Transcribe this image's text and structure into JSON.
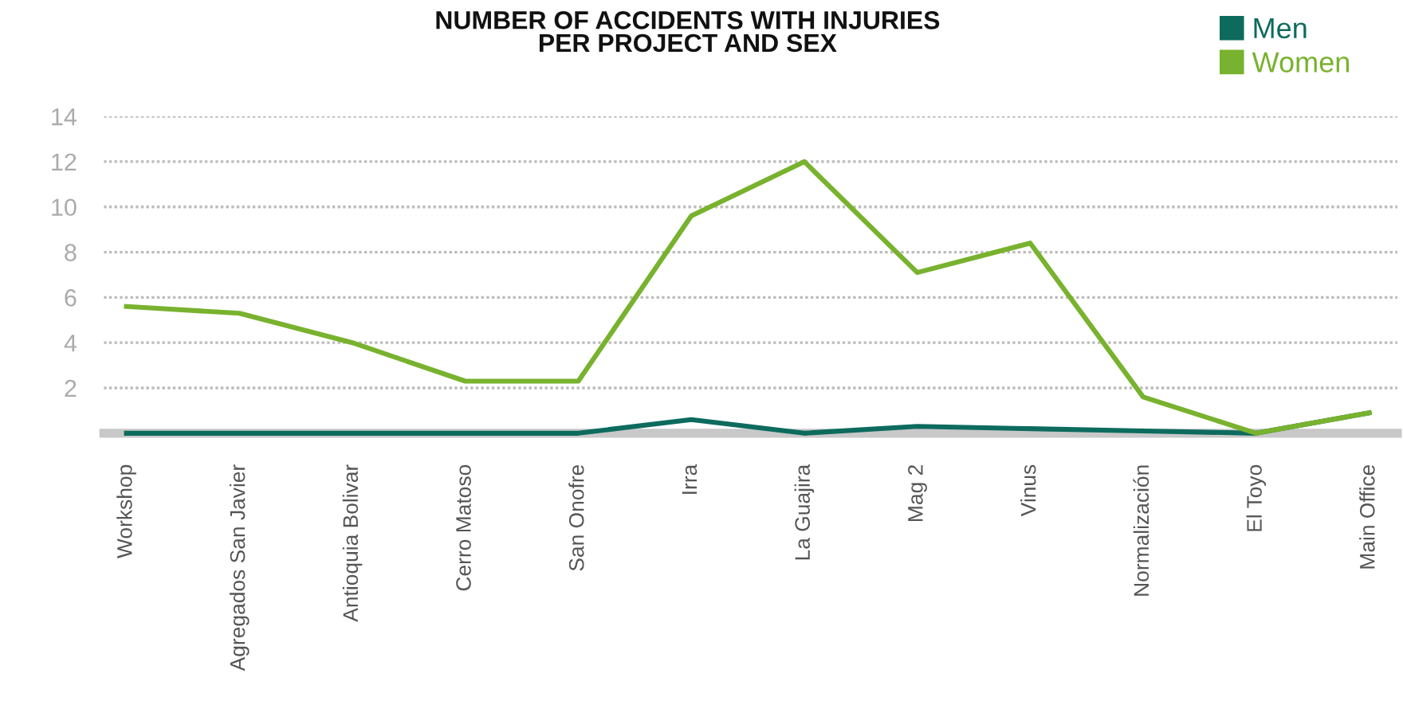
{
  "chart_data": {
    "type": "line",
    "title": "NUMBER OF ACCIDENTS WITH INJURIES\nPER PROJECT AND SEX",
    "categories": [
      "Workshop",
      "Agregados San Javier",
      "Antioquia Bolivar",
      "Cerro Matoso",
      "San Onofre",
      "Irra",
      "La Guajira",
      "Mag 2",
      "Vinus",
      "Normalización",
      "El Toyo",
      "Main Office"
    ],
    "series": [
      {
        "name": "Men",
        "color": "#0d6b5e",
        "values": [
          0,
          0,
          0,
          0,
          0,
          0.6,
          0,
          0.3,
          0.2,
          0.1,
          0,
          0.9
        ]
      },
      {
        "name": "Women",
        "color": "#78b22e",
        "values": [
          5.6,
          5.3,
          4.0,
          2.3,
          2.3,
          9.6,
          12.0,
          7.1,
          8.4,
          1.6,
          0,
          0.9
        ]
      }
    ],
    "ylim": [
      0,
      14
    ],
    "yticks": [
      2,
      4,
      6,
      8,
      10,
      12,
      14
    ],
    "grid": "y",
    "legend": "top right",
    "marker": "none",
    "line_style": "solid"
  }
}
